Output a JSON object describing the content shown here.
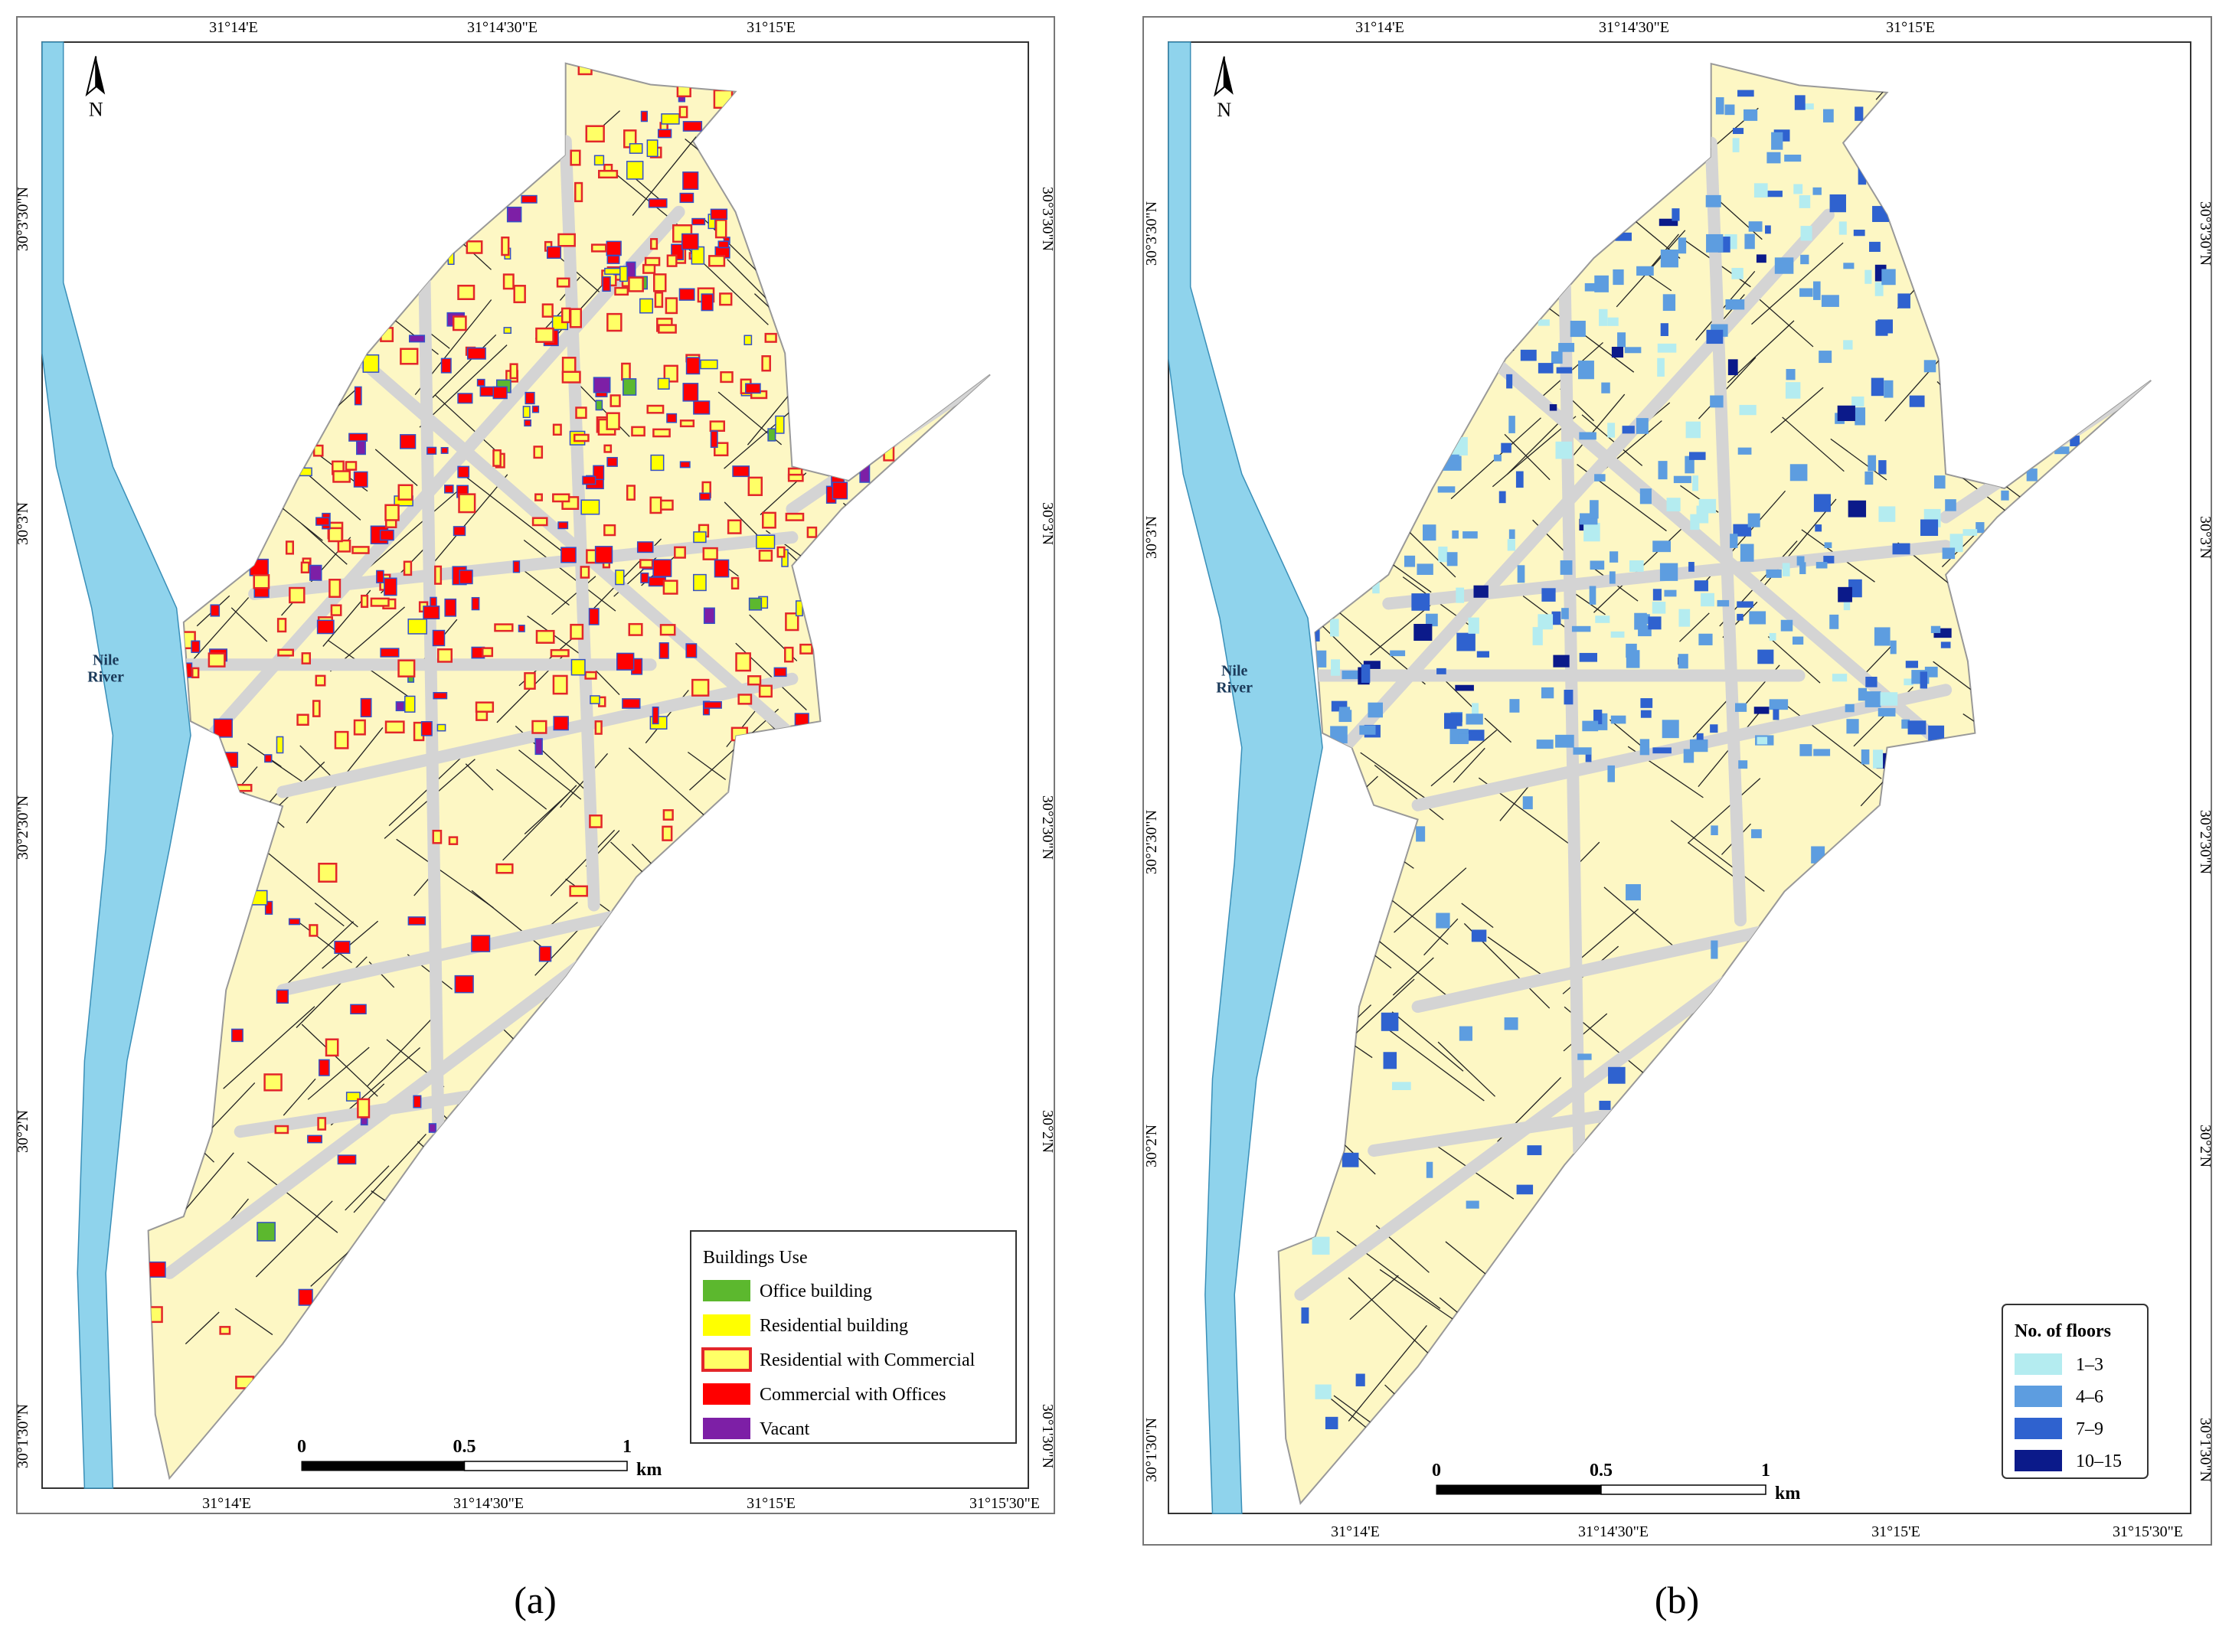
{
  "map": {
    "north_label": "N",
    "river_label": [
      "Nile",
      "River"
    ],
    "longitude_labels": [
      "31°14'E",
      "31°14'30\"E",
      "31°15'E",
      "31°15'30\"E"
    ],
    "latitude_labels": [
      "30°3'30\"N",
      "30°3'N",
      "30°2'30\"N",
      "30°2'N",
      "30°1'30\"N"
    ],
    "scale_bar": {
      "ticks": [
        "0",
        "0.5",
        "1"
      ],
      "unit": "km"
    },
    "panels": [
      {
        "caption": "(a)",
        "legend": {
          "title": "Buildings Use",
          "items": [
            {
              "label": "Office building",
              "color": "#5cb82e"
            },
            {
              "label": "Residential building",
              "color": "#ffff00"
            },
            {
              "label": "Residential with Commercial",
              "color": "#ffff66",
              "outline": "#e3262a"
            },
            {
              "label": "Commercial with Offices",
              "color": "#ff0000"
            },
            {
              "label": "Vacant",
              "color": "#7d1fa6"
            }
          ]
        }
      },
      {
        "caption": "(b)",
        "legend": {
          "title": "No. of floors",
          "items": [
            {
              "label": "1–3",
              "color": "#b4ecf0"
            },
            {
              "label": "4–6",
              "color": "#5d9de0"
            },
            {
              "label": "7–9",
              "color": "#2f62cf"
            },
            {
              "label": "10–15",
              "color": "#0b1a8a"
            }
          ]
        }
      }
    ]
  }
}
